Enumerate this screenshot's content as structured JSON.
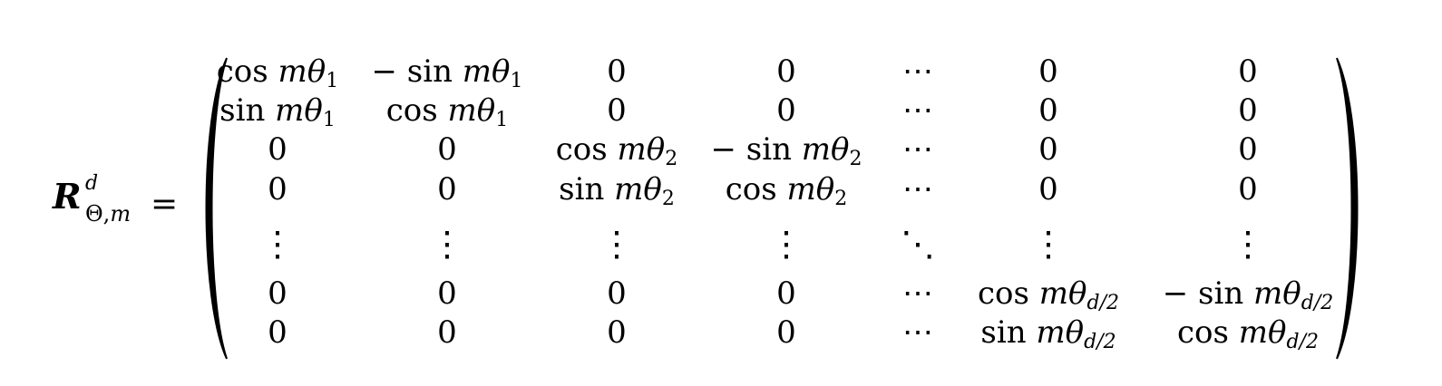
{
  "lhs": {
    "symbol": "R",
    "superscript": "d",
    "subscript_theta": "Θ,",
    "subscript_m": "m",
    "equals": "="
  },
  "matrix": {
    "rows": [
      [
        {
          "fn": "cos ",
          "var": "mθ",
          "sub": "1"
        },
        {
          "fn": "− sin ",
          "var": "mθ",
          "sub": "1"
        },
        {
          "text": "0"
        },
        {
          "text": "0"
        },
        {
          "text": "⋯"
        },
        {
          "text": "0"
        },
        {
          "text": "0"
        }
      ],
      [
        {
          "fn": "sin ",
          "var": "mθ",
          "sub": "1"
        },
        {
          "fn": "cos ",
          "var": "mθ",
          "sub": "1"
        },
        {
          "text": "0"
        },
        {
          "text": "0"
        },
        {
          "text": "⋯"
        },
        {
          "text": "0"
        },
        {
          "text": "0"
        }
      ],
      [
        {
          "text": "0"
        },
        {
          "text": "0"
        },
        {
          "fn": "cos ",
          "var": "mθ",
          "sub": "2"
        },
        {
          "fn": "− sin ",
          "var": "mθ",
          "sub": "2"
        },
        {
          "text": "⋯"
        },
        {
          "text": "0"
        },
        {
          "text": "0"
        }
      ],
      [
        {
          "text": "0"
        },
        {
          "text": "0"
        },
        {
          "fn": "sin ",
          "var": "mθ",
          "sub": "2"
        },
        {
          "fn": "cos ",
          "var": "mθ",
          "sub": "2"
        },
        {
          "text": "⋯"
        },
        {
          "text": "0"
        },
        {
          "text": "0"
        }
      ],
      [
        {
          "text": "⋮"
        },
        {
          "text": "⋮"
        },
        {
          "text": "⋮"
        },
        {
          "text": "⋮"
        },
        {
          "text": "⋱"
        },
        {
          "text": "⋮"
        },
        {
          "text": "⋮"
        }
      ],
      [
        {
          "text": "0"
        },
        {
          "text": "0"
        },
        {
          "text": "0"
        },
        {
          "text": "0"
        },
        {
          "text": "⋯"
        },
        {
          "fn": "cos ",
          "var": "mθ",
          "sub": "d/2"
        },
        {
          "fn": "− sin ",
          "var": "mθ",
          "sub": "d/2"
        }
      ],
      [
        {
          "text": "0"
        },
        {
          "text": "0"
        },
        {
          "text": "0"
        },
        {
          "text": "0"
        },
        {
          "text": "⋯"
        },
        {
          "fn": "sin ",
          "var": "mθ",
          "sub": "d/2"
        },
        {
          "fn": "cos ",
          "var": "mθ",
          "sub": "d/2"
        }
      ]
    ]
  }
}
